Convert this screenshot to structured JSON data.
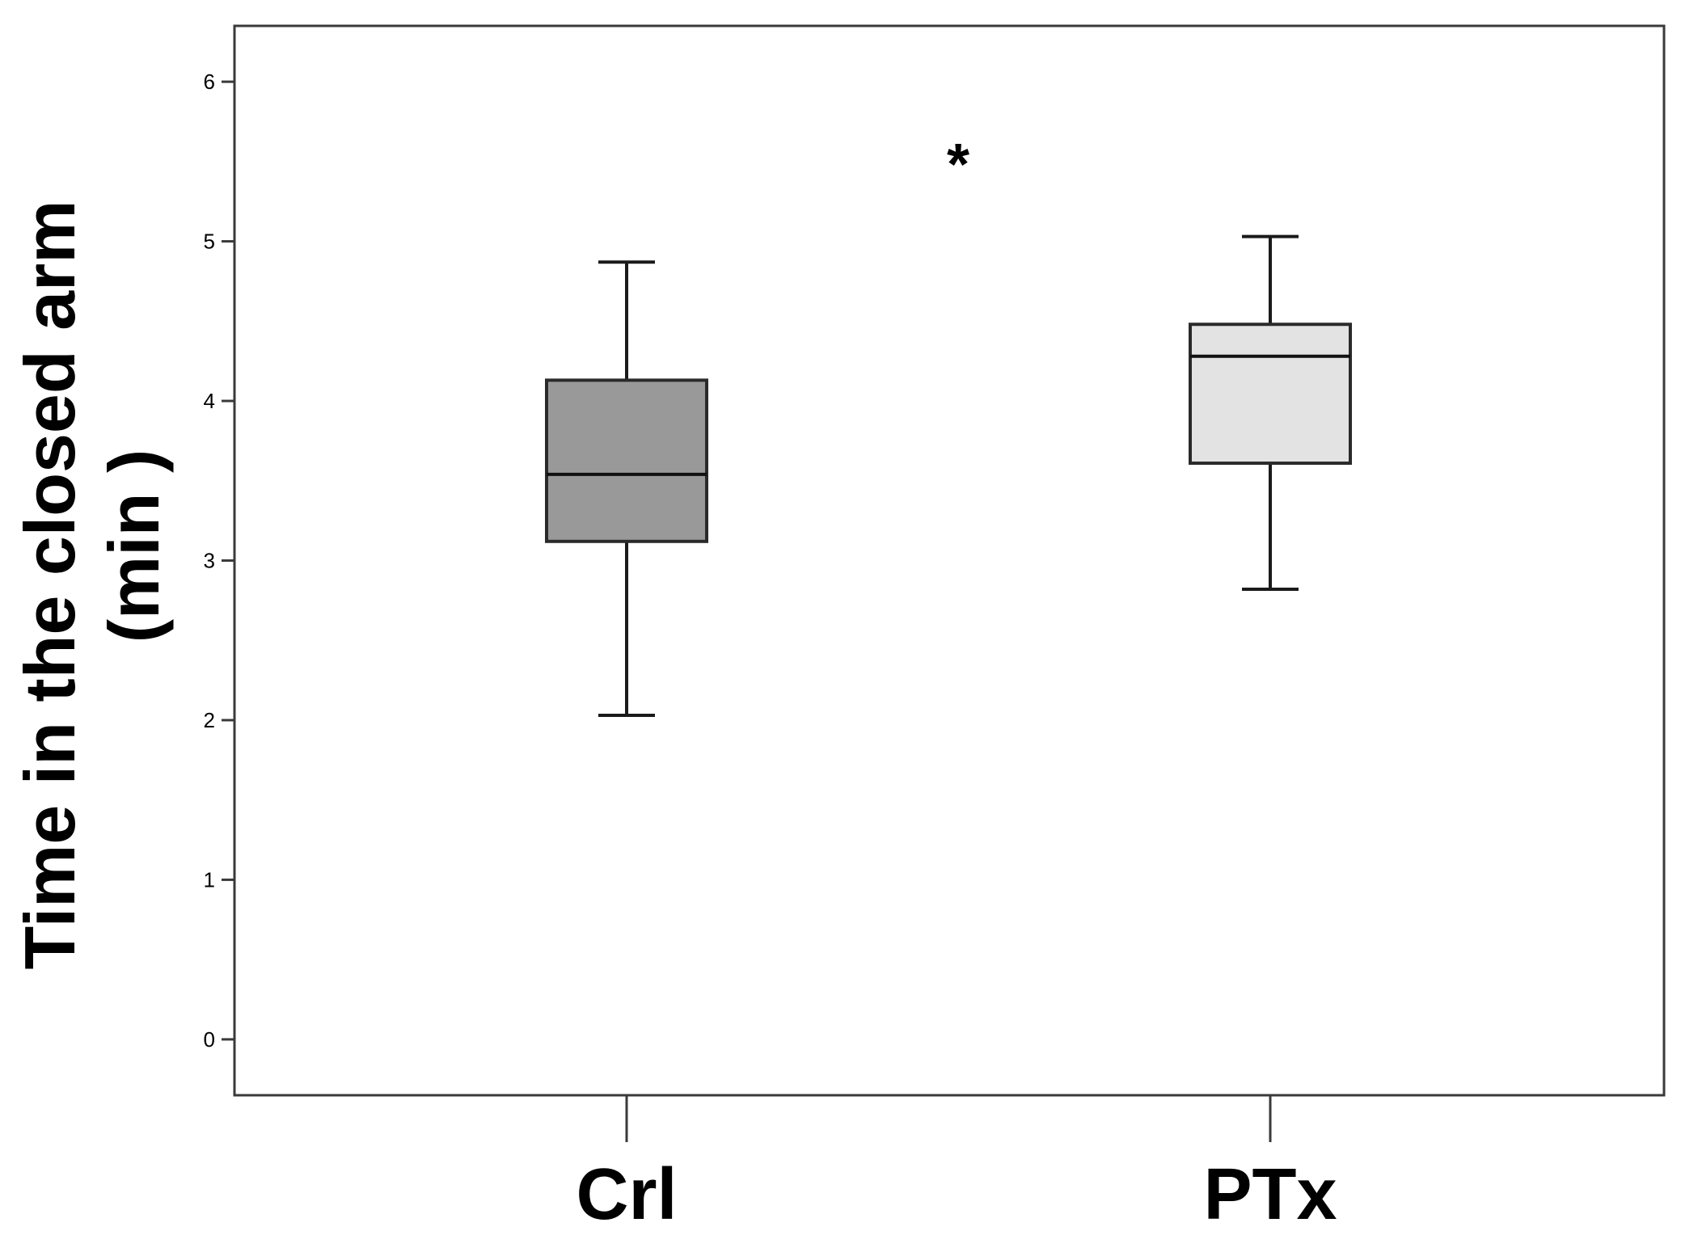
{
  "chart_data": {
    "type": "box",
    "ylabel_lines": [
      "Time in the closed arm",
      "(min )"
    ],
    "ylim": [
      -0.35,
      6.35
    ],
    "yticks": [
      0,
      1,
      2,
      3,
      4,
      5,
      6
    ],
    "grid": false,
    "categories": [
      "Crl",
      "PTx"
    ],
    "boxes": [
      {
        "category": "Crl",
        "whisker_low": 2.03,
        "q1": 3.12,
        "median": 3.54,
        "q3": 4.13,
        "whisker_high": 4.87,
        "color": "#999999"
      },
      {
        "category": "PTx",
        "whisker_low": 2.82,
        "q1": 3.61,
        "median": 4.28,
        "q3": 4.48,
        "whisker_high": 5.03,
        "color": "#e3e3e3"
      }
    ],
    "annotation": {
      "text": "*",
      "x_between": [
        "Crl",
        "PTx"
      ],
      "y": 5.55
    }
  }
}
